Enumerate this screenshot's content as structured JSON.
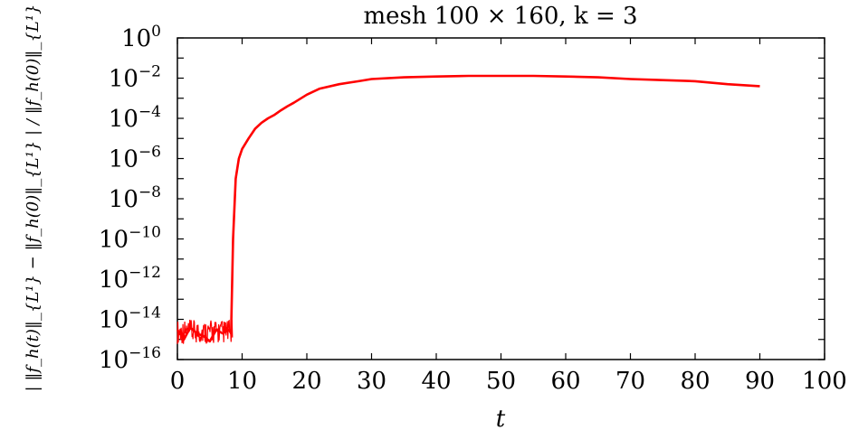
{
  "chart_data": {
    "type": "line",
    "title": "mesh 100 × 160, k = 3",
    "xlabel": "t",
    "ylabel": "| ‖f_h(t)‖_{L¹} − ‖f_h(0)‖_{L¹} | / ‖f_h(0)‖_{L¹}",
    "xlim": [
      0,
      100
    ],
    "ylim": [
      1e-16,
      1
    ],
    "yscale": "log",
    "x_ticks": [
      "0",
      "10",
      "20",
      "30",
      "40",
      "50",
      "60",
      "70",
      "80",
      "90",
      "100"
    ],
    "y_ticks": [
      {
        "base": "10",
        "exp": "0"
      },
      {
        "base": "10",
        "exp": "−2"
      },
      {
        "base": "10",
        "exp": "−4"
      },
      {
        "base": "10",
        "exp": "−6"
      },
      {
        "base": "10",
        "exp": "−8"
      },
      {
        "base": "10",
        "exp": "−10"
      },
      {
        "base": "10",
        "exp": "−12"
      },
      {
        "base": "10",
        "exp": "−14"
      },
      {
        "base": "10",
        "exp": "−16"
      }
    ],
    "series": [
      {
        "color": "#ff0000",
        "x": [
          0,
          1,
          2,
          3,
          4,
          5,
          6,
          7,
          8,
          8.3,
          8.6,
          9,
          9.5,
          10,
          11,
          12,
          13,
          14,
          15,
          16,
          17,
          18,
          20,
          22,
          25,
          28,
          30,
          35,
          40,
          45,
          50,
          55,
          60,
          65,
          70,
          75,
          80,
          85,
          90
        ],
        "y": [
          3e-15,
          1e-15,
          4e-15,
          2e-15,
          1.5e-15,
          8e-16,
          3e-15,
          2e-15,
          3e-15,
          2e-15,
          1e-10,
          1e-07,
          1e-06,
          3e-06,
          1e-05,
          3e-05,
          6e-05,
          0.0001,
          0.00015,
          0.00025,
          0.0004,
          0.0006,
          0.0015,
          0.003,
          0.005,
          0.007,
          0.009,
          0.011,
          0.012,
          0.013,
          0.013,
          0.013,
          0.012,
          0.011,
          0.009,
          0.008,
          0.007,
          0.005,
          0.004
        ]
      }
    ],
    "noise_region": {
      "x_start": 0,
      "x_end": 8.5,
      "y_low": 3e-16,
      "y_high": 1.5e-14
    },
    "grid": false,
    "legend": "none"
  }
}
